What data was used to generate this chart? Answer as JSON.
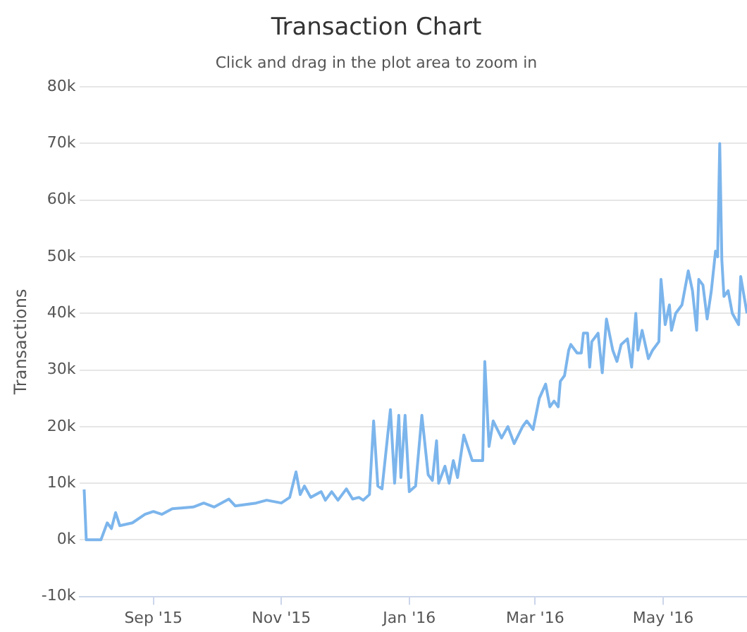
{
  "chart_data": {
    "type": "line",
    "title": "Transaction Chart",
    "subtitle": "Click and drag in the plot area to zoom in",
    "ylabel": "Transactions",
    "color": "#7cb5ec",
    "grid": "y",
    "legend": false,
    "marker": "none",
    "line_style": "solid",
    "xlim": [
      "2015-07-28",
      "2016-06-10"
    ],
    "xticks": [
      {
        "value": "2015-09-01",
        "label": "Sep '15"
      },
      {
        "value": "2015-11-01",
        "label": "Nov '15"
      },
      {
        "value": "2016-01-01",
        "label": "Jan '16"
      },
      {
        "value": "2016-03-01",
        "label": "Mar '16"
      },
      {
        "value": "2016-05-01",
        "label": "May '16"
      }
    ],
    "ylim": [
      -10000,
      80000
    ],
    "yticks": [
      {
        "value": -10000,
        "label": "-10k"
      },
      {
        "value": 0,
        "label": "0k"
      },
      {
        "value": 10000,
        "label": "10k"
      },
      {
        "value": 20000,
        "label": "20k"
      },
      {
        "value": 30000,
        "label": "30k"
      },
      {
        "value": 40000,
        "label": "40k"
      },
      {
        "value": 50000,
        "label": "50k"
      },
      {
        "value": 60000,
        "label": "60k"
      },
      {
        "value": 70000,
        "label": "70k"
      },
      {
        "value": 80000,
        "label": "80k"
      }
    ],
    "x": [
      "2015-07-30",
      "2015-07-31",
      "2015-08-07",
      "2015-08-10",
      "2015-08-12",
      "2015-08-14",
      "2015-08-16",
      "2015-08-22",
      "2015-08-28",
      "2015-09-01",
      "2015-09-05",
      "2015-09-10",
      "2015-09-20",
      "2015-09-25",
      "2015-09-30",
      "2015-10-07",
      "2015-10-10",
      "2015-10-20",
      "2015-10-25",
      "2015-11-01",
      "2015-11-05",
      "2015-11-08",
      "2015-11-10",
      "2015-11-12",
      "2015-11-15",
      "2015-11-20",
      "2015-11-22",
      "2015-11-25",
      "2015-11-28",
      "2015-12-02",
      "2015-12-05",
      "2015-12-08",
      "2015-12-10",
      "2015-12-13",
      "2015-12-15",
      "2015-12-17",
      "2015-12-19",
      "2015-12-23",
      "2015-12-25",
      "2015-12-27",
      "2015-12-28",
      "2015-12-30",
      "2016-01-01",
      "2016-01-04",
      "2016-01-07",
      "2016-01-10",
      "2016-01-12",
      "2016-01-14",
      "2016-01-15",
      "2016-01-18",
      "2016-01-20",
      "2016-01-22",
      "2016-01-24",
      "2016-01-27",
      "2016-01-31",
      "2016-02-05",
      "2016-02-06",
      "2016-02-08",
      "2016-02-10",
      "2016-02-14",
      "2016-02-17",
      "2016-02-20",
      "2016-02-24",
      "2016-02-26",
      "2016-02-29",
      "2016-03-03",
      "2016-03-06",
      "2016-03-08",
      "2016-03-10",
      "2016-03-12",
      "2016-03-13",
      "2016-03-15",
      "2016-03-17",
      "2016-03-18",
      "2016-03-21",
      "2016-03-23",
      "2016-03-24",
      "2016-03-26",
      "2016-03-27",
      "2016-03-28",
      "2016-03-31",
      "2016-04-02",
      "2016-04-04",
      "2016-04-07",
      "2016-04-09",
      "2016-04-11",
      "2016-04-14",
      "2016-04-16",
      "2016-04-18",
      "2016-04-19",
      "2016-04-21",
      "2016-04-24",
      "2016-04-26",
      "2016-04-29",
      "2016-04-30",
      "2016-05-02",
      "2016-05-04",
      "2016-05-05",
      "2016-05-07",
      "2016-05-10",
      "2016-05-13",
      "2016-05-15",
      "2016-05-17",
      "2016-05-18",
      "2016-05-20",
      "2016-05-22",
      "2016-05-24",
      "2016-05-26",
      "2016-05-27",
      "2016-05-28",
      "2016-05-29",
      "2016-05-30",
      "2016-06-01",
      "2016-06-03",
      "2016-06-06",
      "2016-06-07",
      "2016-06-10"
    ],
    "values": [
      8900,
      0,
      0,
      3000,
      2000,
      4800,
      2500,
      3000,
      4500,
      5000,
      4500,
      5500,
      5800,
      6500,
      5800,
      7200,
      6000,
      6500,
      7000,
      6500,
      7500,
      12000,
      8000,
      9500,
      7500,
      8500,
      7000,
      8500,
      7000,
      9000,
      7200,
      7500,
      7000,
      8000,
      21000,
      9500,
      9000,
      23000,
      10000,
      22000,
      11000,
      22000,
      8500,
      9500,
      22000,
      11500,
      10500,
      17500,
      10000,
      13000,
      10000,
      14000,
      11000,
      18500,
      14000,
      14000,
      31500,
      16500,
      21000,
      18000,
      20000,
      17000,
      20000,
      21000,
      19500,
      25000,
      27500,
      23500,
      24500,
      23500,
      28000,
      29000,
      33500,
      34500,
      33000,
      33000,
      36500,
      36500,
      30500,
      35000,
      36500,
      29500,
      39000,
      33500,
      31500,
      34500,
      35500,
      30500,
      40000,
      33500,
      37000,
      32000,
      33500,
      35000,
      46000,
      38000,
      41500,
      37000,
      40000,
      41500,
      47500,
      44000,
      37000,
      46000,
      45000,
      39000,
      44000,
      51000,
      50000,
      70000,
      49500,
      43000,
      44000,
      40000,
      38000,
      46500,
      40000
    ]
  }
}
